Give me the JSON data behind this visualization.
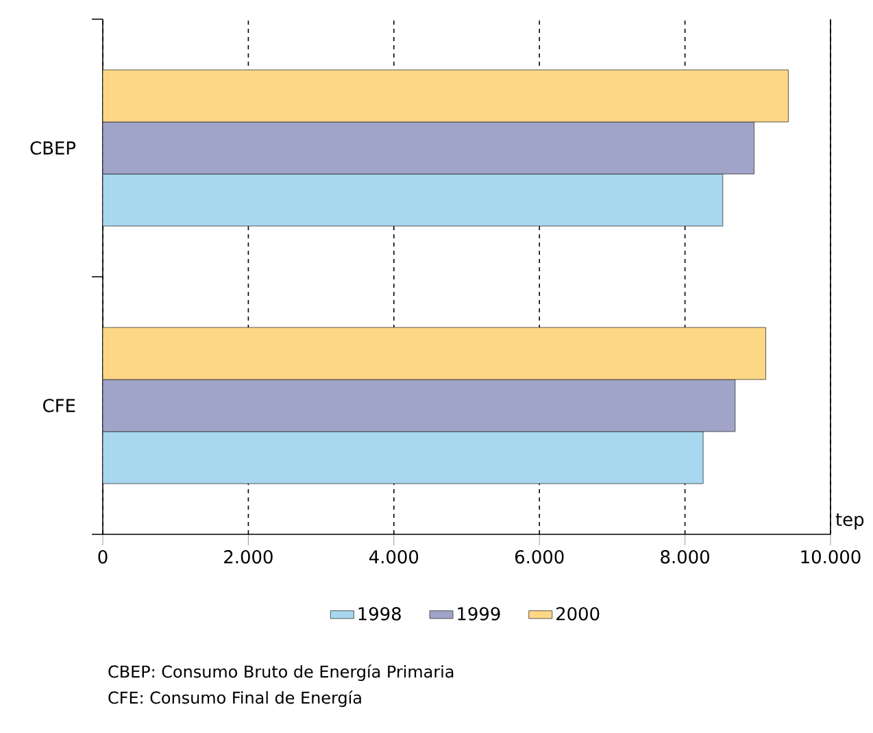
{
  "chart_data": {
    "type": "bar",
    "orientation": "horizontal",
    "categories": [
      "CBEP",
      "CFE"
    ],
    "series": [
      {
        "name": "1998",
        "color": "#a8d8f0",
        "values": [
          8520,
          8250
        ]
      },
      {
        "name": "1999",
        "color": "#a0a4c8",
        "values": [
          8950,
          8690
        ]
      },
      {
        "name": "2000",
        "color": "#fdd785",
        "values": [
          9420,
          9110
        ]
      }
    ],
    "xlabel": "tep",
    "xlim": [
      0,
      10000
    ],
    "xticks": [
      0,
      {
        "value": 2000,
        "label": "2.000"
      },
      {
        "value": 4000,
        "label": "4.000"
      },
      {
        "value": 6000,
        "label": "6.000"
      },
      {
        "value": 8000,
        "label": "8.000"
      },
      {
        "value": 10000,
        "label": "10.000"
      }
    ],
    "grid": "x",
    "legend": "bottom",
    "annotations": [
      "CBEP: Consumo Bruto de Energía Primaria",
      "CFE: Consumo Final de Energía"
    ]
  }
}
